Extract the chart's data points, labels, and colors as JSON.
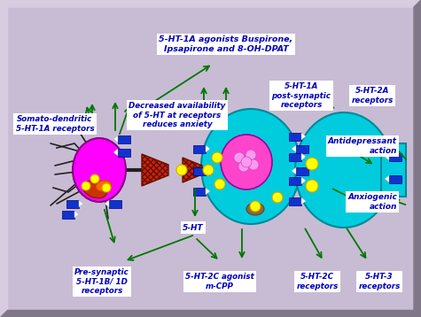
{
  "bg_outer": "#b8afc0",
  "bg_inner": "#c0b8c8",
  "text_color": "#0000bb",
  "arrow_color": "#007700",
  "box_bg": "#ffffff",
  "labels": {
    "top_center": "5-HT-1A agonists Buspirone,\nIpsapirone and 8-OH-DPAT",
    "mid_left": "Somato-dendritic\n5-HT-1A receptors",
    "mid_center": "Decreased availability\nof 5-HT at receptors\nreduces anxiety",
    "mid_right_1": "5-HT-1A\npost-synaptic\nreceptors",
    "mid_right_2": "5-HT-2A\nreceptors",
    "right_1": "Antidepressant\naction",
    "right_2": "Anxiogenic\naction",
    "ht_label": "5-HT",
    "bot_left": "Pre-synaptic\n5-HT-1B/ 1D\nreceptors",
    "bot_center": "5-HT-2C agonist\nm-CPP",
    "bot_right_1": "5-HT-2C\nreceptors",
    "bot_right_2": "5-HT-3\nreceptors"
  }
}
